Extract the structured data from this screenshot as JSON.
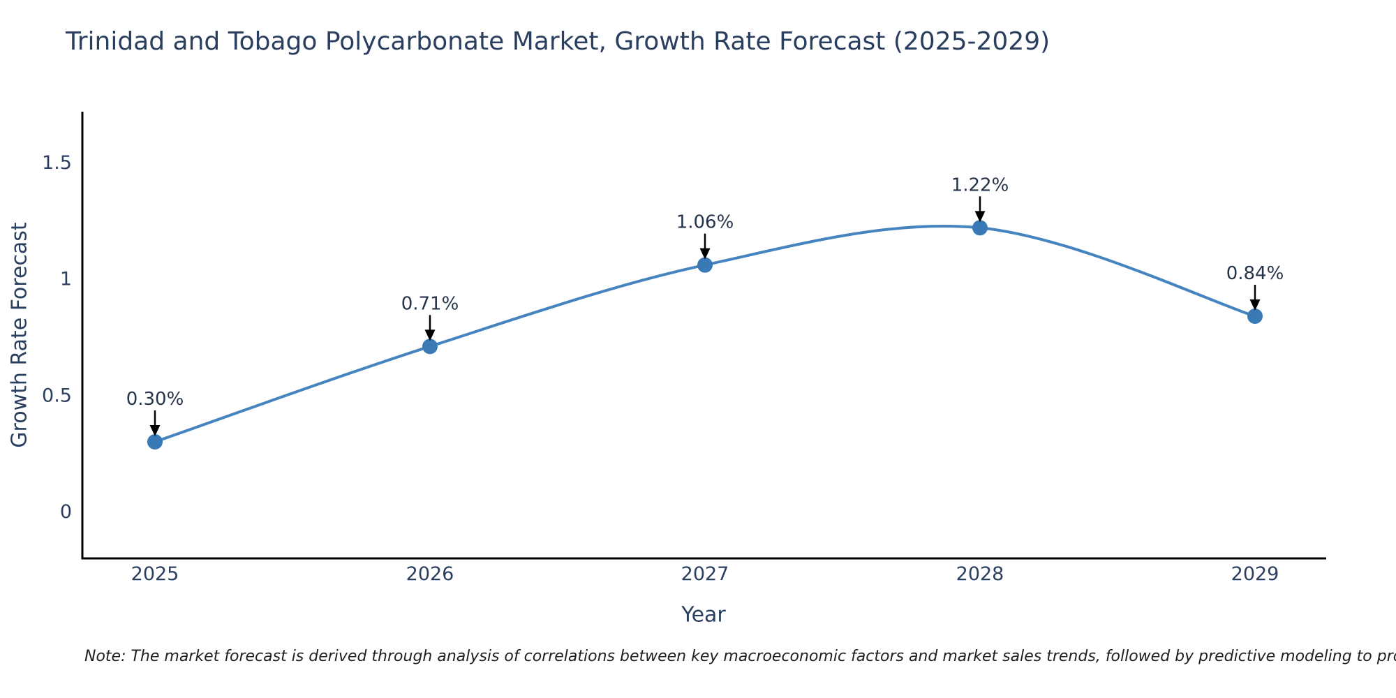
{
  "chart": {
    "title": "Trinidad and Tobago Polycarbonate Market, Growth Rate Forecast (2025-2029)",
    "xlabel": "Year",
    "ylabel": "Growth Rate Forecast",
    "note": "Note: The market forecast is derived through analysis of correlations between key macroeconomic factors and market sales trends, followed by predictive modeling to project future sales"
  },
  "chart_data": {
    "type": "line",
    "curve": "spline",
    "x": [
      2025,
      2026,
      2027,
      2028,
      2029
    ],
    "values": [
      0.3,
      0.71,
      1.06,
      1.22,
      0.84
    ],
    "point_labels": [
      "0.30%",
      "0.71%",
      "1.06%",
      "1.22%",
      "0.84%"
    ],
    "series_name": "Growth Rate Forecast",
    "title": "Trinidad and Tobago Polycarbonate Market, Growth Rate Forecast (2025-2029)",
    "xlabel": "Year",
    "ylabel": "Growth Rate Forecast",
    "xticks": [
      "2025",
      "2026",
      "2027",
      "2028",
      "2029"
    ],
    "yticks": [
      "0",
      "0.5",
      "1",
      "1.5"
    ],
    "ytick_values": [
      0,
      0.5,
      1,
      1.5
    ],
    "ylim": [
      -0.21,
      1.71
    ],
    "grid": false,
    "legend": "none",
    "annotations": "value labels with down arrows above each point",
    "colors": {
      "line": "#4584bf",
      "marker": "#3879b6",
      "axis": "#000000",
      "arrow": "#000000",
      "text": "#2a3f5f",
      "background": "#ffffff"
    }
  }
}
